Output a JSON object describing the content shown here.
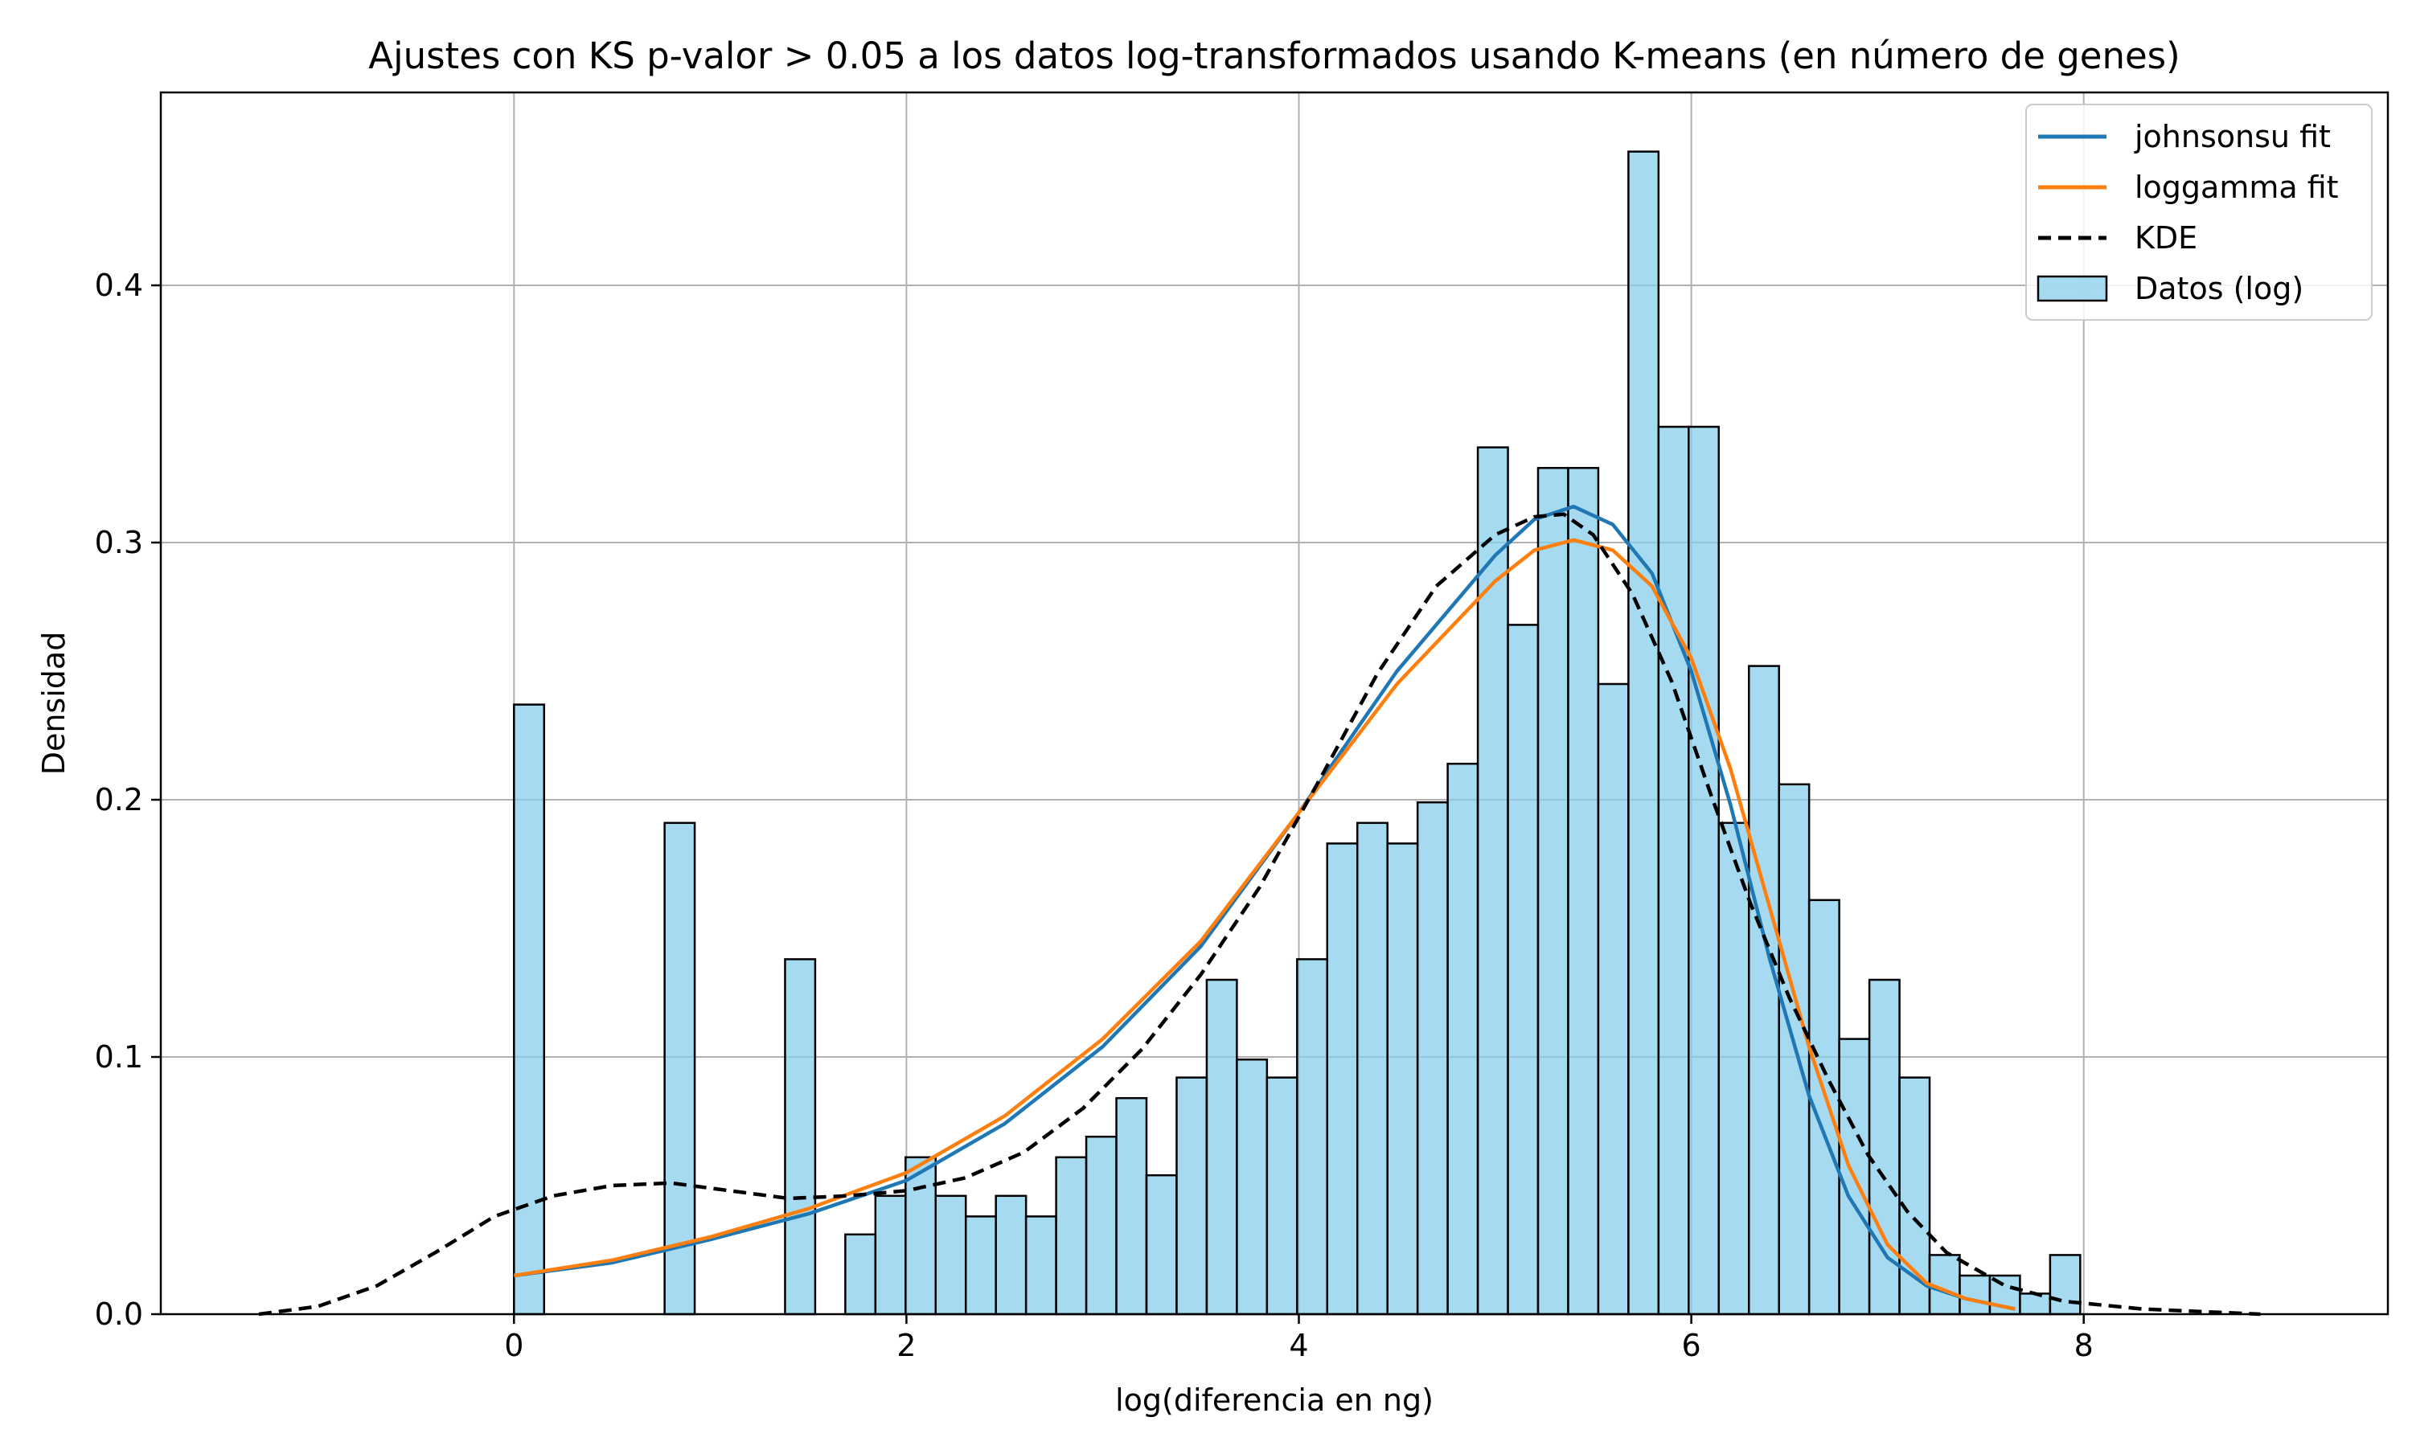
{
  "chart_data": {
    "type": "bar",
    "title": "Ajustes con KS p-valor > 0.05 a los datos log-transformados usando K-means (en número de genes)",
    "xlabel": "log(diferencia en ng)",
    "ylabel": "Densidad",
    "xlim": [
      -1.8,
      9.55
    ],
    "ylim": [
      0,
      0.475
    ],
    "grid": true,
    "legend_position": "top-right",
    "x_ticks": [
      0,
      2,
      4,
      6,
      8
    ],
    "y_ticks": [
      0.0,
      0.1,
      0.2,
      0.3,
      0.4
    ],
    "x_tick_labels": [
      "0",
      "2",
      "4",
      "6",
      "8"
    ],
    "y_tick_labels": [
      "0.0",
      "0.1",
      "0.2",
      "0.3",
      "0.4"
    ],
    "histogram": {
      "name": "Datos (log)",
      "color": "#87ceeb",
      "edge_color": "#000000",
      "bin_start": 0.0,
      "bin_width": 0.1535,
      "values": [
        0.237,
        0,
        0,
        0,
        0,
        0.191,
        0,
        0,
        0,
        0.138,
        0,
        0.031,
        0.046,
        0.061,
        0.046,
        0.038,
        0.046,
        0.038,
        0.061,
        0.069,
        0.084,
        0.054,
        0.092,
        0.13,
        0.099,
        0.092,
        0.138,
        0.183,
        0.191,
        0.183,
        0.199,
        0.214,
        0.337,
        0.268,
        0.329,
        0.329,
        0.245,
        0.452,
        0.345,
        0.345,
        0.191,
        0.252,
        0.206,
        0.161,
        0.107,
        0.13,
        0.092,
        0.023,
        0.015,
        0.015,
        0.008,
        0.023
      ]
    },
    "series": [
      {
        "name": "johnsonsu fit",
        "color": "#1f77b4",
        "style": "solid",
        "x": [
          0.0,
          0.5,
          1.0,
          1.5,
          2.0,
          2.5,
          3.0,
          3.5,
          4.0,
          4.5,
          5.0,
          5.2,
          5.4,
          5.6,
          5.8,
          6.0,
          6.2,
          6.4,
          6.6,
          6.8,
          7.0,
          7.2,
          7.4,
          7.65
        ],
        "y": [
          0.015,
          0.02,
          0.029,
          0.039,
          0.052,
          0.074,
          0.104,
          0.143,
          0.195,
          0.25,
          0.295,
          0.309,
          0.314,
          0.307,
          0.288,
          0.25,
          0.198,
          0.138,
          0.085,
          0.046,
          0.022,
          0.011,
          0.006,
          0.002
        ]
      },
      {
        "name": "loggamma fit",
        "color": "#ff7f0e",
        "style": "solid",
        "x": [
          0.0,
          0.5,
          1.0,
          1.5,
          2.0,
          2.5,
          3.0,
          3.5,
          4.0,
          4.5,
          5.0,
          5.2,
          5.4,
          5.6,
          5.8,
          6.0,
          6.2,
          6.4,
          6.6,
          6.8,
          7.0,
          7.2,
          7.4,
          7.65
        ],
        "y": [
          0.015,
          0.021,
          0.03,
          0.041,
          0.055,
          0.077,
          0.107,
          0.145,
          0.195,
          0.245,
          0.285,
          0.297,
          0.301,
          0.297,
          0.283,
          0.255,
          0.212,
          0.158,
          0.104,
          0.058,
          0.027,
          0.012,
          0.006,
          0.002
        ]
      },
      {
        "name": "KDE",
        "color": "#000000",
        "style": "dashed",
        "x": [
          -1.3,
          -1.0,
          -0.7,
          -0.4,
          -0.1,
          0.2,
          0.5,
          0.8,
          1.1,
          1.4,
          1.7,
          2.0,
          2.3,
          2.6,
          2.9,
          3.2,
          3.5,
          3.8,
          4.1,
          4.4,
          4.7,
          5.0,
          5.2,
          5.35,
          5.5,
          5.7,
          5.9,
          6.1,
          6.3,
          6.5,
          6.7,
          6.9,
          7.1,
          7.3,
          7.6,
          7.9,
          8.3,
          8.9
        ],
        "y": [
          0.0,
          0.003,
          0.011,
          0.024,
          0.038,
          0.046,
          0.05,
          0.051,
          0.048,
          0.045,
          0.046,
          0.048,
          0.053,
          0.063,
          0.08,
          0.103,
          0.132,
          0.166,
          0.207,
          0.249,
          0.283,
          0.303,
          0.31,
          0.311,
          0.303,
          0.28,
          0.246,
          0.202,
          0.16,
          0.123,
          0.091,
          0.062,
          0.04,
          0.024,
          0.011,
          0.005,
          0.002,
          0.0
        ]
      }
    ],
    "legend": [
      "johnsonsu fit",
      "loggamma fit",
      "KDE",
      "Datos (log)"
    ]
  }
}
